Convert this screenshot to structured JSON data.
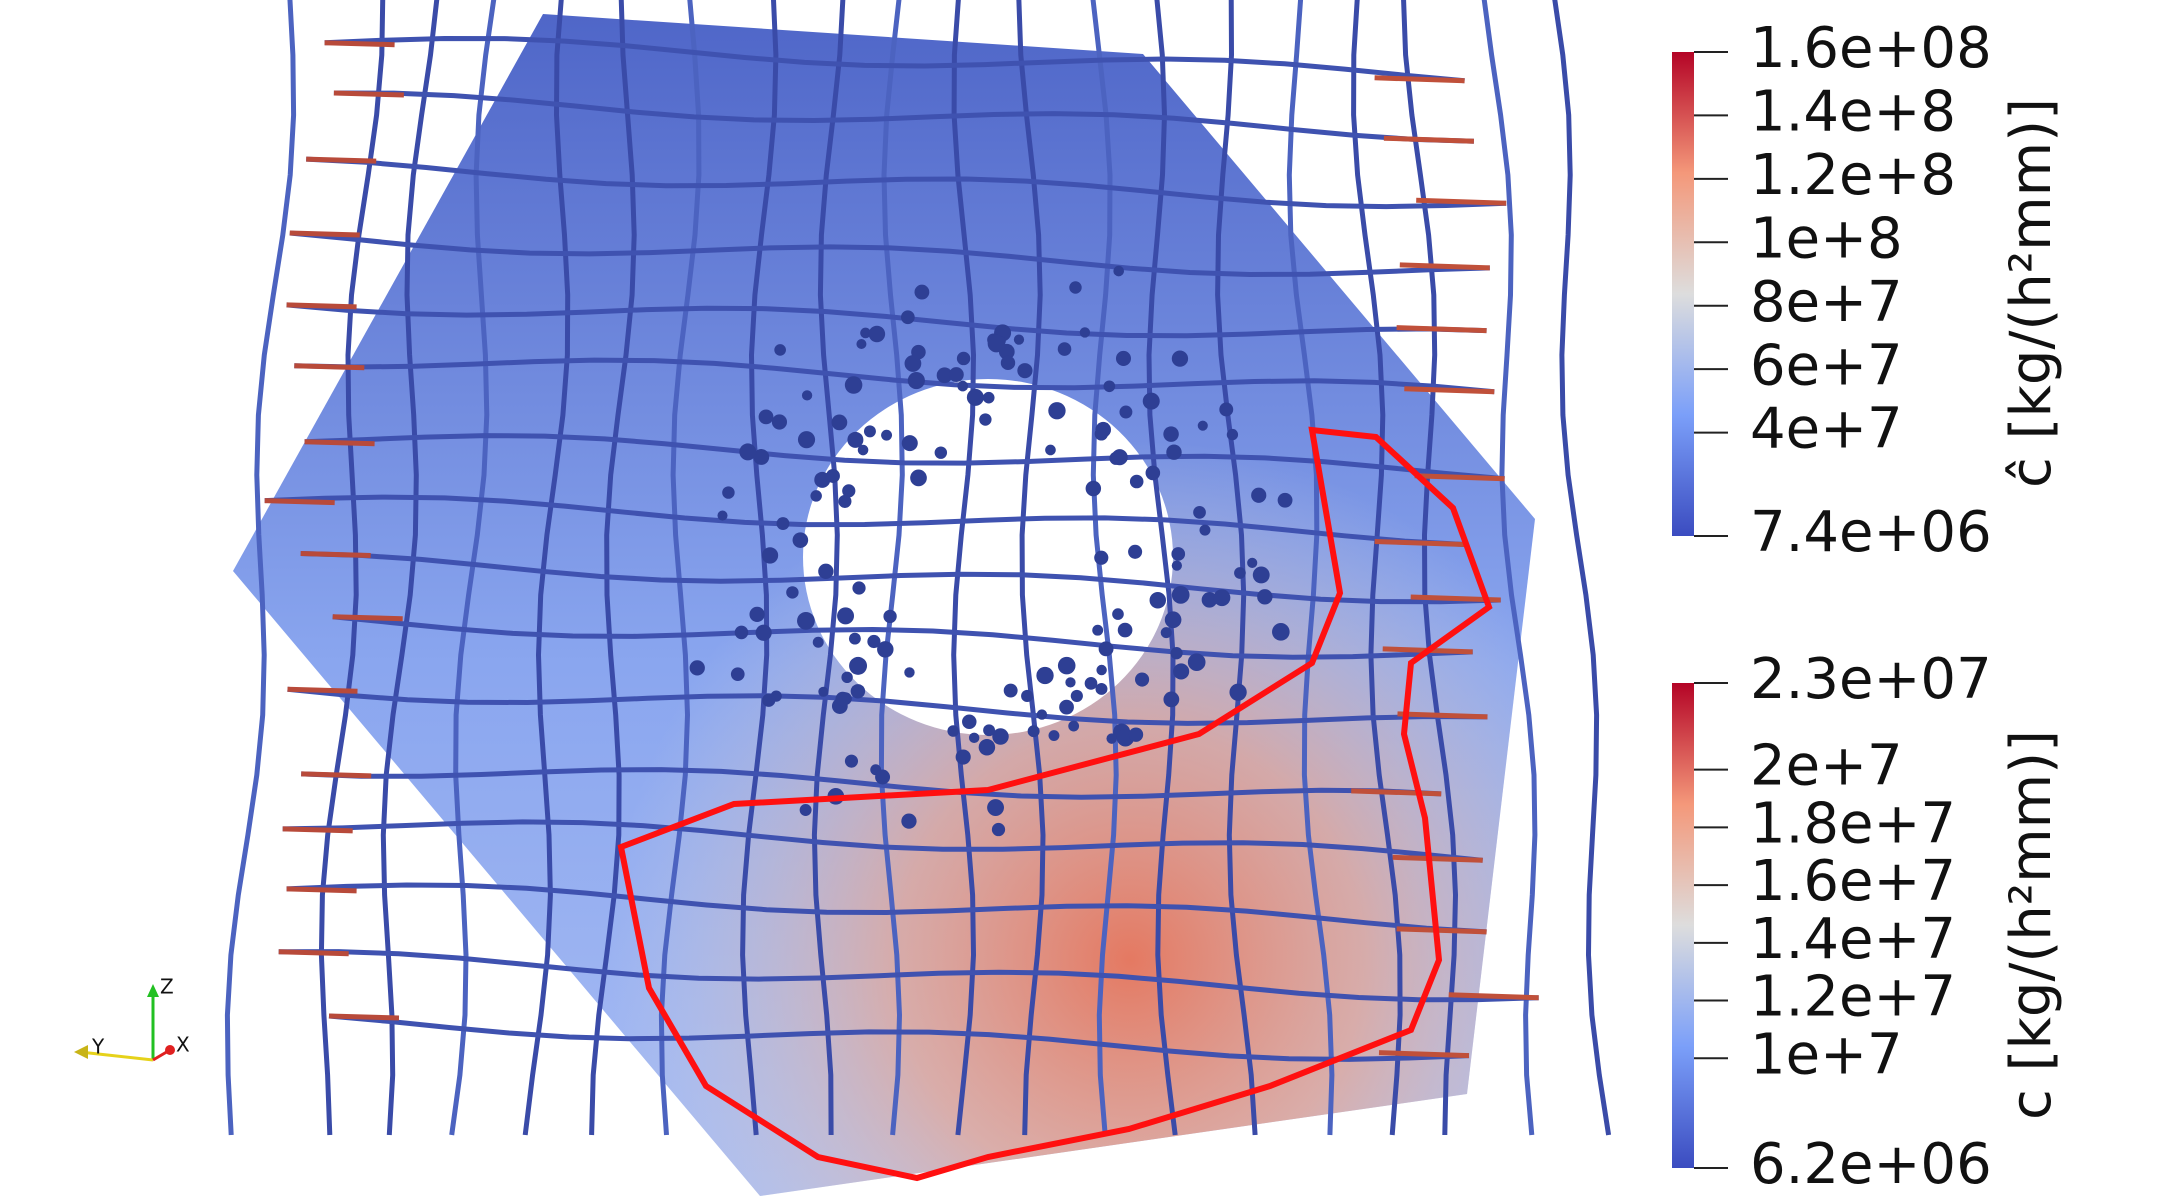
{
  "colorbars": [
    {
      "title": "ĉ [kg/(h²mm)]",
      "range": [
        7400000,
        160000000
      ],
      "ticks": [
        {
          "value": 160000000,
          "label": "1.6e+08"
        },
        {
          "value": 140000000,
          "label": "1.4e+8"
        },
        {
          "value": 120000000,
          "label": "1.2e+8"
        },
        {
          "value": 100000000,
          "label": "1e+8"
        },
        {
          "value": 80000000,
          "label": "8e+7"
        },
        {
          "value": 60000000,
          "label": "6e+7"
        },
        {
          "value": 40000000,
          "label": "4e+7"
        },
        {
          "value": 7400000,
          "label": "7.4e+06"
        }
      ]
    },
    {
      "title": "c [kg/(h²mm)]",
      "range": [
        6200000,
        23000000
      ],
      "ticks": [
        {
          "value": 23000000,
          "label": "2.3e+07"
        },
        {
          "value": 20000000,
          "label": "2e+7"
        },
        {
          "value": 18000000,
          "label": "1.8e+7"
        },
        {
          "value": 16000000,
          "label": "1.6e+7"
        },
        {
          "value": 14000000,
          "label": "1.4e+7"
        },
        {
          "value": 12000000,
          "label": "1.2e+7"
        },
        {
          "value": 10000000,
          "label": "1e+7"
        },
        {
          "value": 6200000,
          "label": "6.2e+06"
        }
      ]
    }
  ],
  "orientation_axes": {
    "z": "Z",
    "y": "Y",
    "x": "X"
  }
}
